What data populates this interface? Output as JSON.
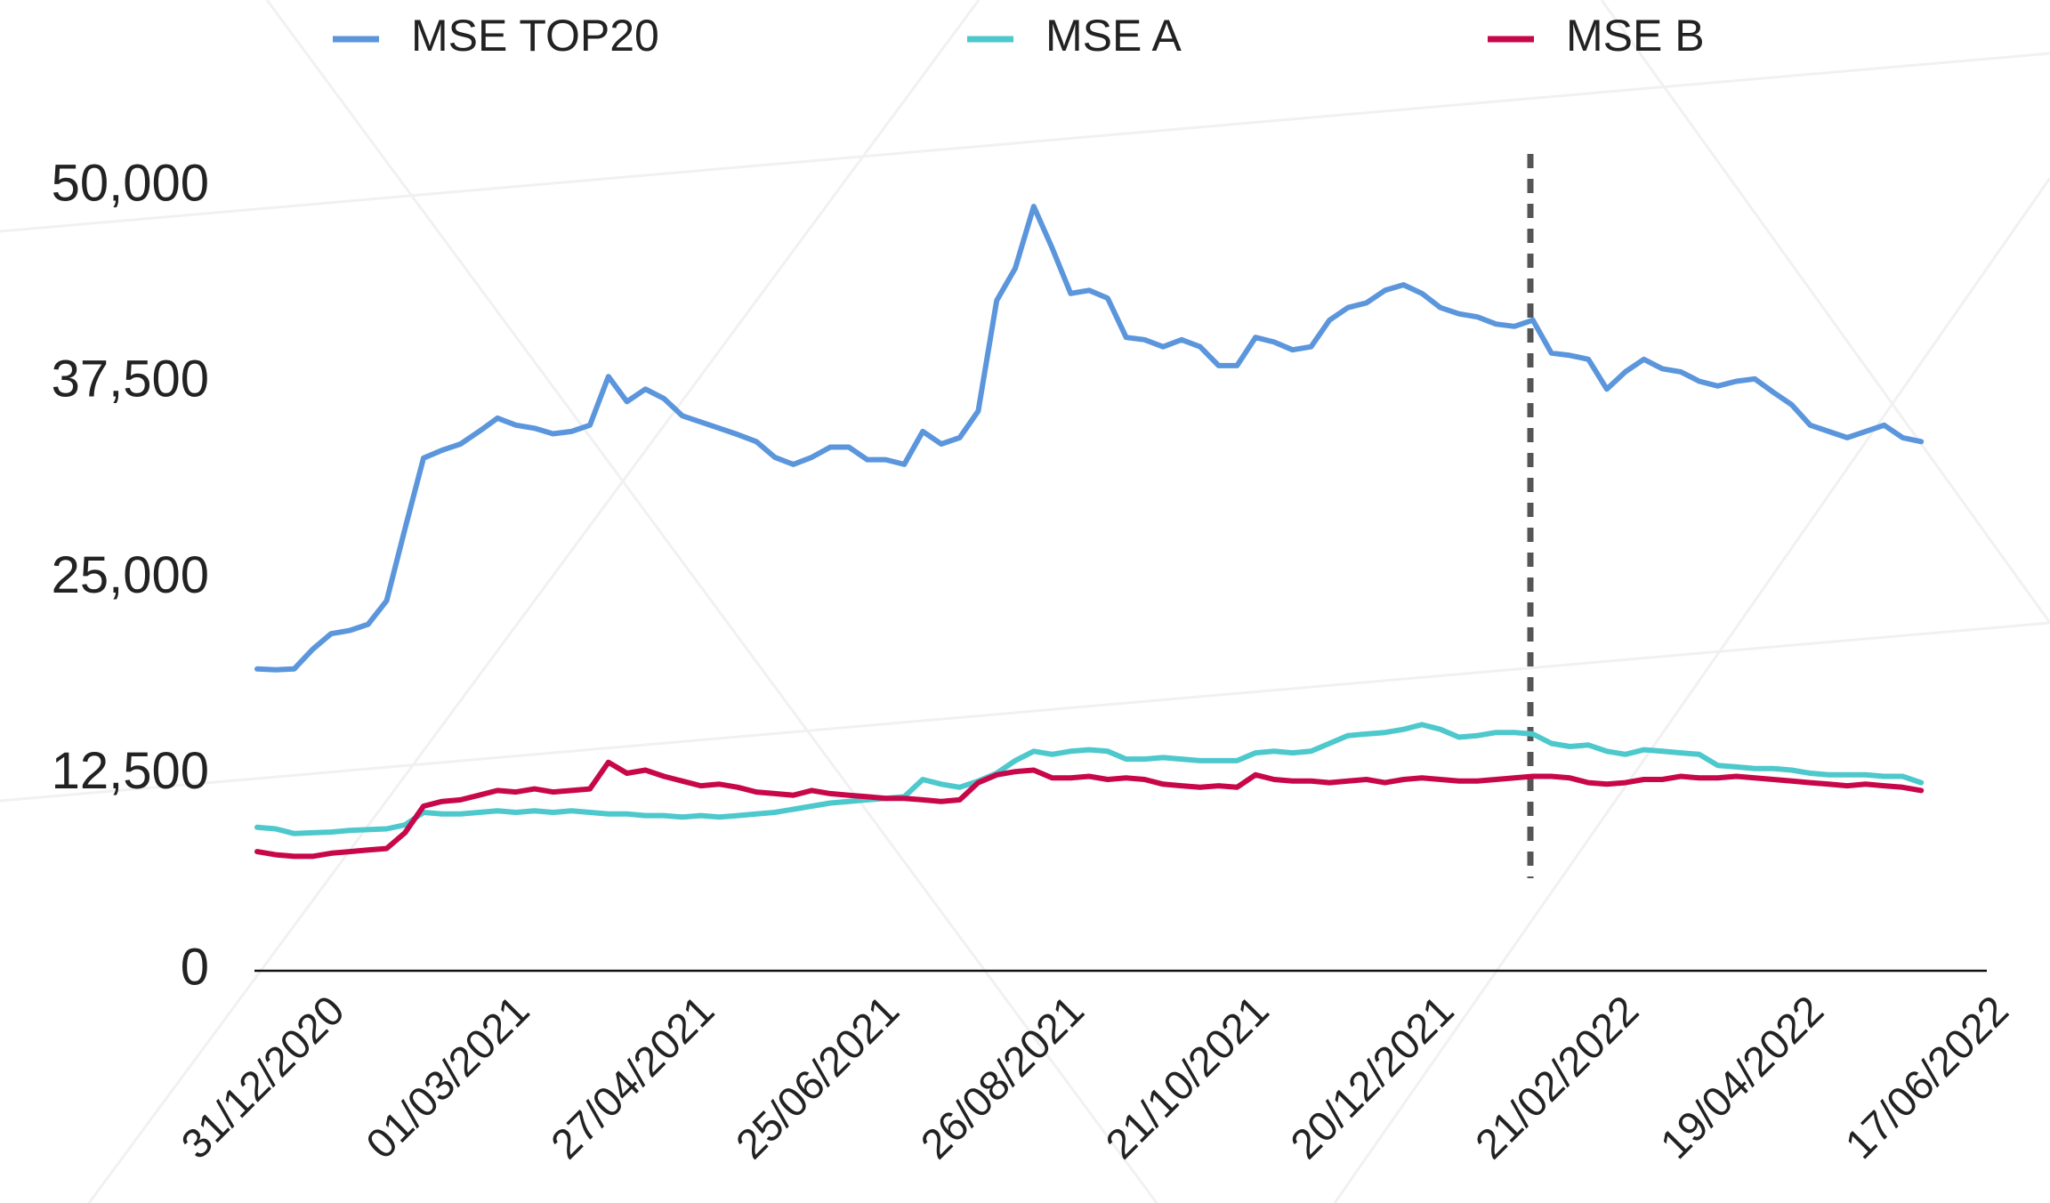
{
  "chart_data": {
    "type": "line",
    "categories": [
      "31/12/2020",
      null,
      null,
      null,
      null,
      null,
      null,
      null,
      null,
      null,
      "01/03/2021",
      null,
      null,
      null,
      null,
      null,
      null,
      null,
      null,
      null,
      "27/04/2021",
      null,
      null,
      null,
      null,
      null,
      null,
      null,
      null,
      null,
      "25/06/2021",
      null,
      null,
      null,
      null,
      null,
      null,
      null,
      null,
      null,
      "26/08/2021",
      null,
      null,
      null,
      null,
      null,
      null,
      null,
      null,
      null,
      "21/10/2021",
      null,
      null,
      null,
      null,
      null,
      null,
      null,
      null,
      null,
      "20/12/2021",
      null,
      null,
      null,
      null,
      null,
      null,
      null,
      null,
      null,
      "21/02/2022",
      null,
      null,
      null,
      null,
      null,
      null,
      null,
      null,
      null,
      "19/04/2022",
      null,
      null,
      null,
      null,
      null,
      null,
      null,
      null,
      null,
      "17/06/2022"
    ],
    "series": [
      {
        "name": "MSE TOP20",
        "color": "#5b96dd",
        "values": [
          19250,
          19200,
          19250,
          20500,
          21500,
          21700,
          22100,
          23600,
          28200,
          32700,
          33200,
          33600,
          34400,
          35250,
          34800,
          34600,
          34250,
          34400,
          34800,
          37900,
          36300,
          37100,
          36500,
          35400,
          35000,
          34600,
          34200,
          33750,
          32750,
          32300,
          32750,
          33400,
          33400,
          32600,
          32600,
          32300,
          34400,
          33600,
          34000,
          35700,
          42750,
          44800,
          48750,
          46100,
          43200,
          43400,
          42900,
          40400,
          40250,
          39800,
          40250,
          39800,
          38600,
          38600,
          40400,
          40100,
          39600,
          39800,
          41500,
          42300,
          42600,
          43400,
          43750,
          43200,
          42300,
          41900,
          41700,
          41250,
          41100,
          41500,
          39400,
          39250,
          39000,
          37100,
          38200,
          39000,
          38400,
          38200,
          37600,
          37300,
          37600,
          37750,
          36900,
          36100,
          34800,
          34400,
          34000,
          34400,
          34800,
          34000,
          33750
        ]
      },
      {
        "name": "MSE A",
        "color": "#4dc8cc",
        "values": [
          9150,
          9050,
          8750,
          8800,
          8850,
          8950,
          9000,
          9050,
          9300,
          10100,
          10000,
          10000,
          10100,
          10200,
          10100,
          10200,
          10100,
          10200,
          10100,
          10000,
          10000,
          9900,
          9900,
          9800,
          9900,
          9800,
          9900,
          10000,
          10100,
          10300,
          10500,
          10700,
          10800,
          10900,
          11000,
          11100,
          12200,
          11900,
          11700,
          12100,
          12600,
          13400,
          14000,
          13800,
          14000,
          14100,
          14000,
          13500,
          13500,
          13600,
          13500,
          13400,
          13400,
          13400,
          13900,
          14000,
          13900,
          14000,
          14500,
          15000,
          15100,
          15200,
          15400,
          15700,
          15400,
          14900,
          15000,
          15200,
          15200,
          15100,
          14500,
          14300,
          14400,
          14000,
          13800,
          14100,
          14000,
          13900,
          13800,
          13100,
          13000,
          12900,
          12900,
          12800,
          12600,
          12500,
          12500,
          12500,
          12400,
          12400,
          12000
        ]
      },
      {
        "name": "MSE B",
        "color": "#c8074a",
        "values": [
          7600,
          7400,
          7300,
          7300,
          7500,
          7600,
          7700,
          7800,
          8800,
          10500,
          10800,
          10900,
          11200,
          11500,
          11400,
          11600,
          11400,
          11500,
          11600,
          13300,
          12600,
          12800,
          12400,
          12100,
          11800,
          11900,
          11700,
          11400,
          11300,
          11200,
          11500,
          11300,
          11200,
          11100,
          11000,
          11000,
          10900,
          10800,
          10900,
          12000,
          12500,
          12700,
          12800,
          12300,
          12300,
          12400,
          12200,
          12300,
          12200,
          11900,
          11800,
          11700,
          11800,
          11700,
          12500,
          12200,
          12100,
          12100,
          12000,
          12100,
          12200,
          12000,
          12200,
          12300,
          12200,
          12100,
          12100,
          12200,
          12300,
          12400,
          12400,
          12300,
          12000,
          11900,
          12000,
          12200,
          12200,
          12400,
          12300,
          12300,
          12400,
          12300,
          12200,
          12100,
          12000,
          11900,
          11800,
          11900,
          11800,
          11700,
          11500
        ]
      }
    ],
    "ylim": [
      0,
      50000
    ],
    "yticks": [
      0,
      {
        "value": 12500,
        "label": "12,500"
      },
      {
        "value": 25000,
        "label": "25,000"
      },
      {
        "value": 37500,
        "label": "37,500"
      },
      {
        "value": 50000,
        "label": "50,000"
      }
    ],
    "grid": false,
    "legend": "top"
  }
}
